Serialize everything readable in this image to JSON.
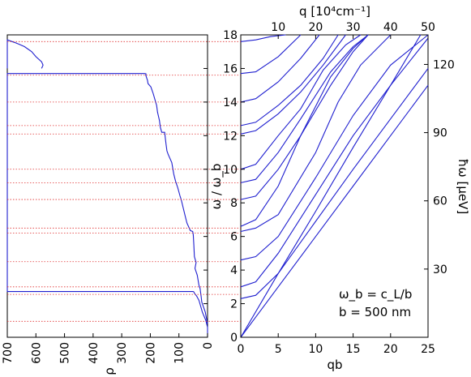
{
  "chart_data": [
    {
      "type": "line",
      "name": "density-of-states",
      "xlabel": "ρ",
      "ylabel": "",
      "xlim": [
        700,
        0
      ],
      "ylim": [
        0,
        18
      ],
      "x_ticks": [
        "700",
        "600",
        "500",
        "400",
        "300",
        "200",
        "100",
        "0"
      ],
      "series": [
        {
          "x": [
            0,
            0,
            6,
            18,
            25,
            30,
            38,
            45,
            48,
            50,
            280,
            690,
            700,
            700,
            690,
            420,
            285,
            240,
            220,
            215,
            216,
            212,
            210,
            208,
            198,
            190,
            183,
            178,
            175,
            168,
            165,
            160,
            150,
            145,
            142,
            138,
            125,
            118,
            112,
            104,
            96,
            92,
            78,
            72,
            60,
            52,
            50,
            48,
            46,
            40,
            44,
            40,
            36,
            32,
            30,
            26,
            22,
            20,
            8,
            0
          ],
          "y": [
            0,
            0.6,
            1.0,
            1.5,
            1.9,
            2.2,
            2.45,
            2.6,
            2.7,
            2.72,
            2.72,
            2.72,
            2.72,
            15.7,
            15.7,
            15.7,
            15.7,
            15.7,
            15.7,
            15.68,
            15.6,
            15.4,
            15.3,
            15.1,
            14.9,
            14.5,
            14.1,
            13.8,
            13.4,
            12.9,
            12.5,
            12.2,
            12.2,
            11.5,
            11.1,
            10.9,
            10.4,
            9.7,
            9.3,
            8.9,
            8.4,
            8.2,
            7.2,
            6.8,
            6.35,
            6.3,
            6.1,
            5.5,
            4.8,
            4.45,
            4.1,
            3.9,
            3.7,
            3.3,
            3.1,
            2.9,
            2.4,
            2.1,
            1.5,
            0.8
          ]
        },
        {
          "x": [
            700,
            700,
            675,
            660,
            640,
            615,
            600,
            580,
            575,
            580
          ],
          "y": [
            16.0,
            17.7,
            17.55,
            17.45,
            17.3,
            17.0,
            16.7,
            16.4,
            16.2,
            16.0
          ]
        }
      ],
      "reference_lines_y": [
        0.95,
        2.55,
        3.0,
        4.5,
        6.2,
        6.5,
        8.2,
        9.2,
        10.0,
        12.1,
        12.6,
        14.0,
        15.6,
        17.6
      ]
    },
    {
      "type": "line",
      "name": "phonon-dispersion",
      "xlabel": "qb",
      "ylabel": "ω / ω_b",
      "xlim": [
        0,
        25
      ],
      "ylim": [
        0,
        18
      ],
      "x_ticks": [
        "0",
        "5",
        "10",
        "15",
        "20",
        "25"
      ],
      "y_ticks": [
        "0",
        "2",
        "4",
        "6",
        "8",
        "10",
        "12",
        "14",
        "16",
        "18"
      ],
      "top_axis": {
        "label": "q [10⁴cm⁻¹]",
        "ticks": [
          "10",
          "20",
          "30",
          "40",
          "50"
        ],
        "range": [
          0,
          50
        ]
      },
      "right_axis": {
        "label": "ħω [μeV]",
        "ticks": [
          "30",
          "60",
          "90",
          "120"
        ],
        "range": [
          0,
          133
        ]
      },
      "annotations": [
        "ω_b = c_L/b",
        "b = 500 nm"
      ],
      "series": [
        {
          "x": [
            0,
            2,
            5,
            10,
            15,
            20,
            25
          ],
          "y": [
            0.0,
            1.2,
            3.0,
            6.0,
            9.0,
            12.0,
            15.0
          ]
        },
        {
          "x": [
            0,
            5,
            10,
            15,
            20,
            24
          ],
          "y": [
            0.0,
            3.8,
            7.5,
            11.3,
            15.0,
            18.0
          ]
        },
        {
          "x": [
            0,
            2,
            5,
            10,
            15,
            20,
            25
          ],
          "y": [
            2.3,
            2.5,
            3.8,
            6.9,
            10.0,
            13.0,
            16.0
          ]
        },
        {
          "x": [
            0,
            2,
            5,
            10,
            15,
            20,
            25
          ],
          "y": [
            3.0,
            3.3,
            5.0,
            8.5,
            12.0,
            15.0,
            17.8
          ]
        },
        {
          "x": [
            0,
            2,
            5,
            10,
            15,
            20,
            25
          ],
          "y": [
            4.6,
            4.8,
            6.0,
            9.5,
            13.2,
            16.2,
            18.0
          ]
        },
        {
          "x": [
            0,
            2,
            5,
            10,
            13,
            16,
            20
          ],
          "y": [
            6.3,
            6.5,
            7.3,
            11.0,
            14.0,
            16.2,
            18.0
          ]
        },
        {
          "x": [
            0,
            2,
            5,
            8,
            12,
            15,
            17
          ],
          "y": [
            6.6,
            7.0,
            9.0,
            12.0,
            15.0,
            17.0,
            18.0
          ]
        },
        {
          "x": [
            0,
            2,
            5,
            8,
            12,
            15,
            17
          ],
          "y": [
            8.2,
            8.4,
            10.0,
            12.0,
            15.5,
            17.2,
            18.0
          ]
        },
        {
          "x": [
            0,
            2,
            5,
            8,
            12,
            15,
            17
          ],
          "y": [
            9.2,
            9.4,
            11.0,
            13.0,
            15.8,
            17.3,
            18.0
          ]
        },
        {
          "x": [
            0,
            2,
            5,
            8,
            11,
            14,
            16
          ],
          "y": [
            10.0,
            10.3,
            12.0,
            13.6,
            15.9,
            17.4,
            18.0
          ]
        },
        {
          "x": [
            0,
            2,
            5,
            8,
            11,
            14
          ],
          "y": [
            12.1,
            12.3,
            13.3,
            14.6,
            16.2,
            18.0
          ]
        },
        {
          "x": [
            0,
            2,
            5,
            8,
            11,
            13
          ],
          "y": [
            12.6,
            12.8,
            13.8,
            15.0,
            16.6,
            18.0
          ]
        },
        {
          "x": [
            0,
            2,
            5,
            8,
            10.5
          ],
          "y": [
            14.0,
            14.2,
            15.2,
            16.6,
            18.0
          ]
        },
        {
          "x": [
            0,
            2,
            5,
            8
          ],
          "y": [
            15.7,
            15.8,
            16.7,
            18.0
          ]
        },
        {
          "x": [
            0,
            2,
            4,
            6
          ],
          "y": [
            17.6,
            17.7,
            17.9,
            18.0
          ]
        }
      ]
    }
  ]
}
